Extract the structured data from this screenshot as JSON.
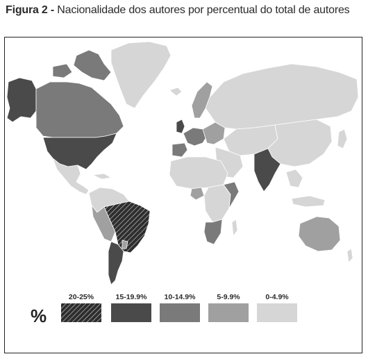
{
  "figure": {
    "title_bold": "Figura 2 -",
    "title_rest": " Nacionalidade dos autores por percentual do total de autores"
  },
  "legend": {
    "symbol": "%",
    "items": [
      {
        "label": "20-25%",
        "color": "#3a3a3a",
        "pattern": "hatched"
      },
      {
        "label": "15-19.9%",
        "color": "#4a4a4a",
        "pattern": "solid"
      },
      {
        "label": "10-14.9%",
        "color": "#7a7a7a",
        "pattern": "solid"
      },
      {
        "label": "5-9.9%",
        "color": "#a0a0a0",
        "pattern": "solid"
      },
      {
        "label": "0-4.9%",
        "color": "#d6d6d6",
        "pattern": "solid"
      }
    ]
  },
  "map": {
    "ocean_color": "#ffffff",
    "border_color": "#ffffff"
  }
}
